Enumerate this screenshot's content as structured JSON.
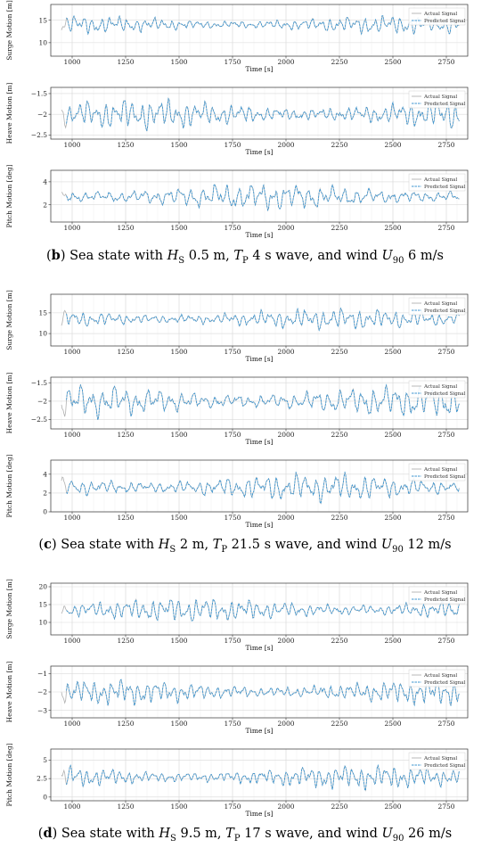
{
  "legend": {
    "actual": "Actual Signal",
    "predicted": "Predicted Signal"
  },
  "colors": {
    "actual": "#b0b0b0",
    "predicted": "#3c96d2"
  },
  "xlabel": "Time [s]",
  "captions": [
    {
      "letter": "b",
      "pre": ") Sea state with ",
      "hs_sym": "H",
      "hs_sub": "S",
      "hs_val": " 0.5 m, ",
      "tp_sym": "T",
      "tp_sub": "P",
      "tp_val": " 4 s wave, and wind ",
      "u_sym": "U",
      "u_sub": "90",
      "u_val": " 6 m/s"
    },
    {
      "letter": "c",
      "pre": ") Sea state with ",
      "hs_sym": "H",
      "hs_sub": "S",
      "hs_val": " 2 m, ",
      "tp_sym": "T",
      "tp_sub": "P",
      "tp_val": " 21.5 s wave, and wind ",
      "u_sym": "U",
      "u_sub": "90",
      "u_val": " 12 m/s"
    },
    {
      "letter": "d",
      "pre": ") Sea state with ",
      "hs_sym": "H",
      "hs_sub": "S",
      "hs_val": " 9.5 m, ",
      "tp_sym": "T",
      "tp_sub": "P",
      "tp_val": " 17 s wave, and wind ",
      "u_sym": "U",
      "u_sub": "90",
      "u_val": " 26 m/s"
    }
  ],
  "chart_data": [
    {
      "type": "line",
      "group": "b",
      "ylabel": "Surge Motion [m]",
      "xlim": [
        900,
        2850
      ],
      "ylim": [
        7,
        18.5
      ],
      "xticks": [
        1000,
        1250,
        1500,
        1750,
        2000,
        2250,
        2500,
        2750
      ],
      "yticks": [
        10,
        15
      ],
      "actual_start": 950,
      "predicted_start": 970,
      "end": 2810,
      "mean": 14,
      "amp": 1.8,
      "series": [
        {
          "name": "Actual Signal"
        },
        {
          "name": "Predicted Signal"
        }
      ]
    },
    {
      "type": "line",
      "group": "b",
      "ylabel": "Heave Motion [m]",
      "xlim": [
        900,
        2850
      ],
      "ylim": [
        -2.6,
        -1.35
      ],
      "xticks": [
        1000,
        1250,
        1500,
        1750,
        2000,
        2250,
        2500,
        2750
      ],
      "yticks": [
        -2.5,
        -2.0,
        -1.5
      ],
      "actual_start": 950,
      "predicted_start": 970,
      "end": 2810,
      "mean": -2.0,
      "amp": 0.32,
      "series": [
        {
          "name": "Actual Signal"
        },
        {
          "name": "Predicted Signal"
        }
      ]
    },
    {
      "type": "line",
      "group": "b",
      "ylabel": "Pitch Motion [deg]",
      "xlim": [
        900,
        2850
      ],
      "ylim": [
        0.5,
        5
      ],
      "xticks": [
        1000,
        1250,
        1500,
        1750,
        2000,
        2250,
        2500,
        2750
      ],
      "yticks": [
        2,
        4
      ],
      "actual_start": 950,
      "predicted_start": 970,
      "end": 2810,
      "mean": 2.7,
      "amp": 1.0,
      "series": [
        {
          "name": "Actual Signal"
        },
        {
          "name": "Predicted Signal"
        }
      ]
    },
    {
      "type": "line",
      "group": "c",
      "ylabel": "Surge Motion [m]",
      "xlim": [
        900,
        2850
      ],
      "ylim": [
        7,
        19.5
      ],
      "xticks": [
        1000,
        1250,
        1500,
        1750,
        2000,
        2250,
        2500,
        2750
      ],
      "yticks": [
        10,
        15
      ],
      "actual_start": 950,
      "predicted_start": 970,
      "end": 2810,
      "mean": 13.5,
      "amp": 2.2,
      "series": [
        {
          "name": "Actual Signal"
        },
        {
          "name": "Predicted Signal"
        }
      ]
    },
    {
      "type": "line",
      "group": "c",
      "ylabel": "Heave Motion [m]",
      "xlim": [
        900,
        2850
      ],
      "ylim": [
        -2.75,
        -1.35
      ],
      "xticks": [
        1000,
        1250,
        1500,
        1750,
        2000,
        2250,
        2500,
        2750
      ],
      "yticks": [
        -2.5,
        -2.0,
        -1.5
      ],
      "actual_start": 950,
      "predicted_start": 970,
      "end": 2810,
      "mean": -2.0,
      "amp": 0.38,
      "series": [
        {
          "name": "Actual Signal"
        },
        {
          "name": "Predicted Signal"
        }
      ]
    },
    {
      "type": "line",
      "group": "c",
      "ylabel": "Pitch Motion [deg]",
      "xlim": [
        900,
        2850
      ],
      "ylim": [
        0,
        5.5
      ],
      "xticks": [
        1000,
        1250,
        1500,
        1750,
        2000,
        2250,
        2500,
        2750
      ],
      "yticks": [
        0,
        2,
        4
      ],
      "actual_start": 950,
      "predicted_start": 970,
      "end": 2810,
      "mean": 2.6,
      "amp": 1.3,
      "series": [
        {
          "name": "Actual Signal"
        },
        {
          "name": "Predicted Signal"
        }
      ]
    },
    {
      "type": "line",
      "group": "d",
      "ylabel": "Surge Motion [m]",
      "xlim": [
        900,
        2850
      ],
      "ylim": [
        6.5,
        21
      ],
      "xticks": [
        1000,
        1250,
        1500,
        1750,
        2000,
        2250,
        2500,
        2750
      ],
      "yticks": [
        10,
        15,
        20
      ],
      "actual_start": 950,
      "predicted_start": 970,
      "end": 2810,
      "mean": 13.5,
      "amp": 3.0,
      "series": [
        {
          "name": "Actual Signal"
        },
        {
          "name": "Predicted Signal"
        }
      ]
    },
    {
      "type": "line",
      "group": "d",
      "ylabel": "Heave Motion [m]",
      "xlim": [
        900,
        2850
      ],
      "ylim": [
        -3.4,
        -0.6
      ],
      "xticks": [
        1000,
        1250,
        1500,
        1750,
        2000,
        2250,
        2500,
        2750
      ],
      "yticks": [
        -3,
        -2,
        -1
      ],
      "actual_start": 950,
      "predicted_start": 970,
      "end": 2810,
      "mean": -2.0,
      "amp": 0.6,
      "series": [
        {
          "name": "Actual Signal"
        },
        {
          "name": "Predicted Signal"
        }
      ]
    },
    {
      "type": "line",
      "group": "d",
      "ylabel": "Pitch Motion [deg]",
      "xlim": [
        900,
        2850
      ],
      "ylim": [
        -0.5,
        6.5
      ],
      "xticks": [
        1000,
        1250,
        1500,
        1750,
        2000,
        2250,
        2500,
        2750
      ],
      "yticks": [
        0.0,
        2.5,
        5.0
      ],
      "actual_start": 950,
      "predicted_start": 970,
      "end": 2810,
      "mean": 2.7,
      "amp": 1.4,
      "series": [
        {
          "name": "Actual Signal"
        },
        {
          "name": "Predicted Signal"
        }
      ]
    }
  ]
}
